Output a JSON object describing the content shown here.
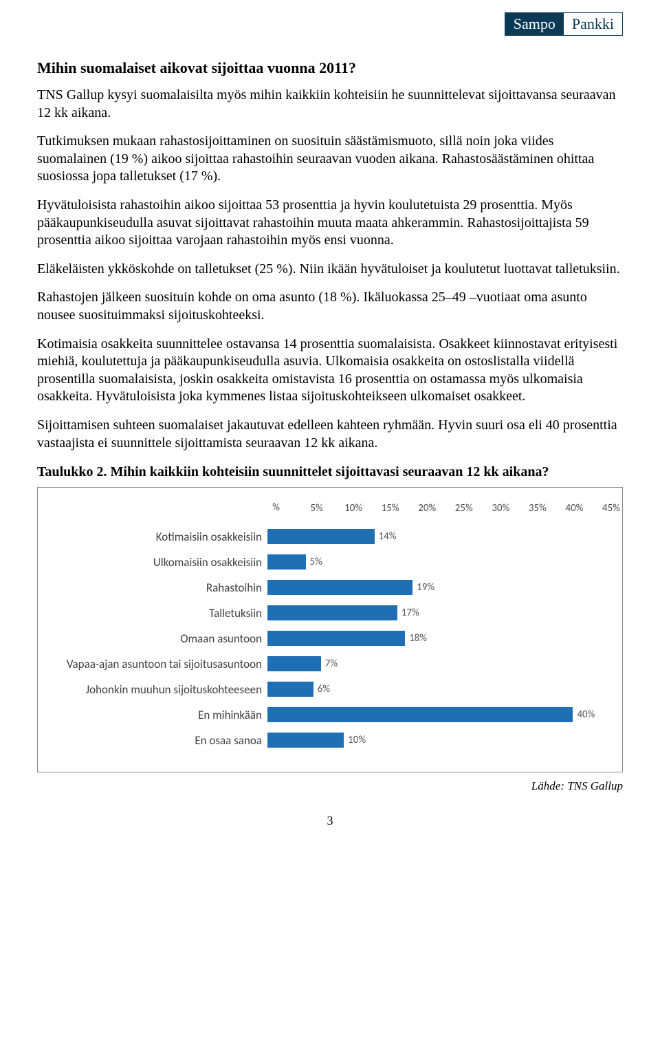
{
  "logo": {
    "left": "Sampo",
    "right": "Pankki"
  },
  "heading": "Mihin suomalaiset aikovat sijoittaa vuonna 2011?",
  "p1": "TNS Gallup kysyi suomalaisilta myös mihin kaikkiin kohteisiin he suunnittelevat sijoittavansa seuraavan 12 kk aikana.",
  "p2": "Tutkimuksen mukaan rahastosijoittaminen on suosituin säästämismuoto, sillä noin joka viides suomalainen (19 %) aikoo sijoittaa rahastoihin seuraavan vuoden aikana. Rahastosäästäminen ohittaa suosiossa jopa talletukset (17 %).",
  "p3": "Hyvätuloisista rahastoihin aikoo sijoittaa 53 prosenttia ja hyvin koulutetuista 29 prosenttia. Myös pääkaupunkiseudulla asuvat sijoittavat rahastoihin muuta maata ahkerammin. Rahastosijoittajista 59 prosenttia aikoo sijoittaa varojaan rahastoihin myös ensi vuonna.",
  "p4": "Eläkeläisten ykköskohde on talletukset (25 %). Niin ikään hyvätuloiset ja koulutetut luottavat talletuksiin.",
  "p5": "Rahastojen jälkeen suosituin kohde on oma asunto (18 %). Ikäluokassa 25–49 –vuotiaat oma asunto nousee suosituimmaksi sijoituskohteeksi.",
  "p6": "Kotimaisia osakkeita suunnittelee ostavansa 14 prosenttia suomalaisista. Osakkeet kiinnostavat erityisesti miehiä, koulutettuja ja pääkaupunkiseudulla asuvia. Ulkomaisia osakkeita on ostoslistalla viidellä prosentilla suomalaisista, joskin osakkeita omistavista 16 prosenttia on ostamassa myös ulkomaisia osakkeita. Hyvätuloisista joka kymmenes listaa sijoituskohteikseen ulkomaiset osakkeet.",
  "p7": "Sijoittamisen suhteen suomalaiset jakautuvat edelleen kahteen ryhmään. Hyvin suuri osa eli 40 prosenttia vastaajista ei suunnittele sijoittamista seuraavan 12 kk aikana.",
  "table_caption": "Taulukko 2. Mihin kaikkiin kohteisiin suunnittelet sijoittavasi seuraavan 12 kk aikana?",
  "chart": {
    "type": "bar-horizontal",
    "xmax": 45,
    "xtick_step": 5,
    "bar_color": "#1f6fb5",
    "grid_color": "#ffffff",
    "axis_symbol": "%",
    "ticks": [
      "5%",
      "10%",
      "15%",
      "20%",
      "25%",
      "30%",
      "35%",
      "40%",
      "45%"
    ],
    "label_fontsize": 17,
    "value_fontsize": 15,
    "categories": [
      {
        "label": "Kotimaisiin osakkeisiin",
        "value": 14,
        "text": "14%"
      },
      {
        "label": "Ulkomaisiin osakkeisiin",
        "value": 5,
        "text": "5%"
      },
      {
        "label": "Rahastoihin",
        "value": 19,
        "text": "19%"
      },
      {
        "label": "Talletuksiin",
        "value": 17,
        "text": "17%"
      },
      {
        "label": "Omaan asuntoon",
        "value": 18,
        "text": "18%"
      },
      {
        "label": "Vapaa-ajan asuntoon tai sijoitusasuntoon",
        "value": 7,
        "text": "7%"
      },
      {
        "label": "Johonkin muuhun sijoituskohteeseen",
        "value": 6,
        "text": "6%"
      },
      {
        "label": "En mihinkään",
        "value": 40,
        "text": "40%"
      },
      {
        "label": "En osaa sanoa",
        "value": 10,
        "text": "10%"
      }
    ]
  },
  "source": "Lähde: TNS Gallup",
  "page_number": "3"
}
